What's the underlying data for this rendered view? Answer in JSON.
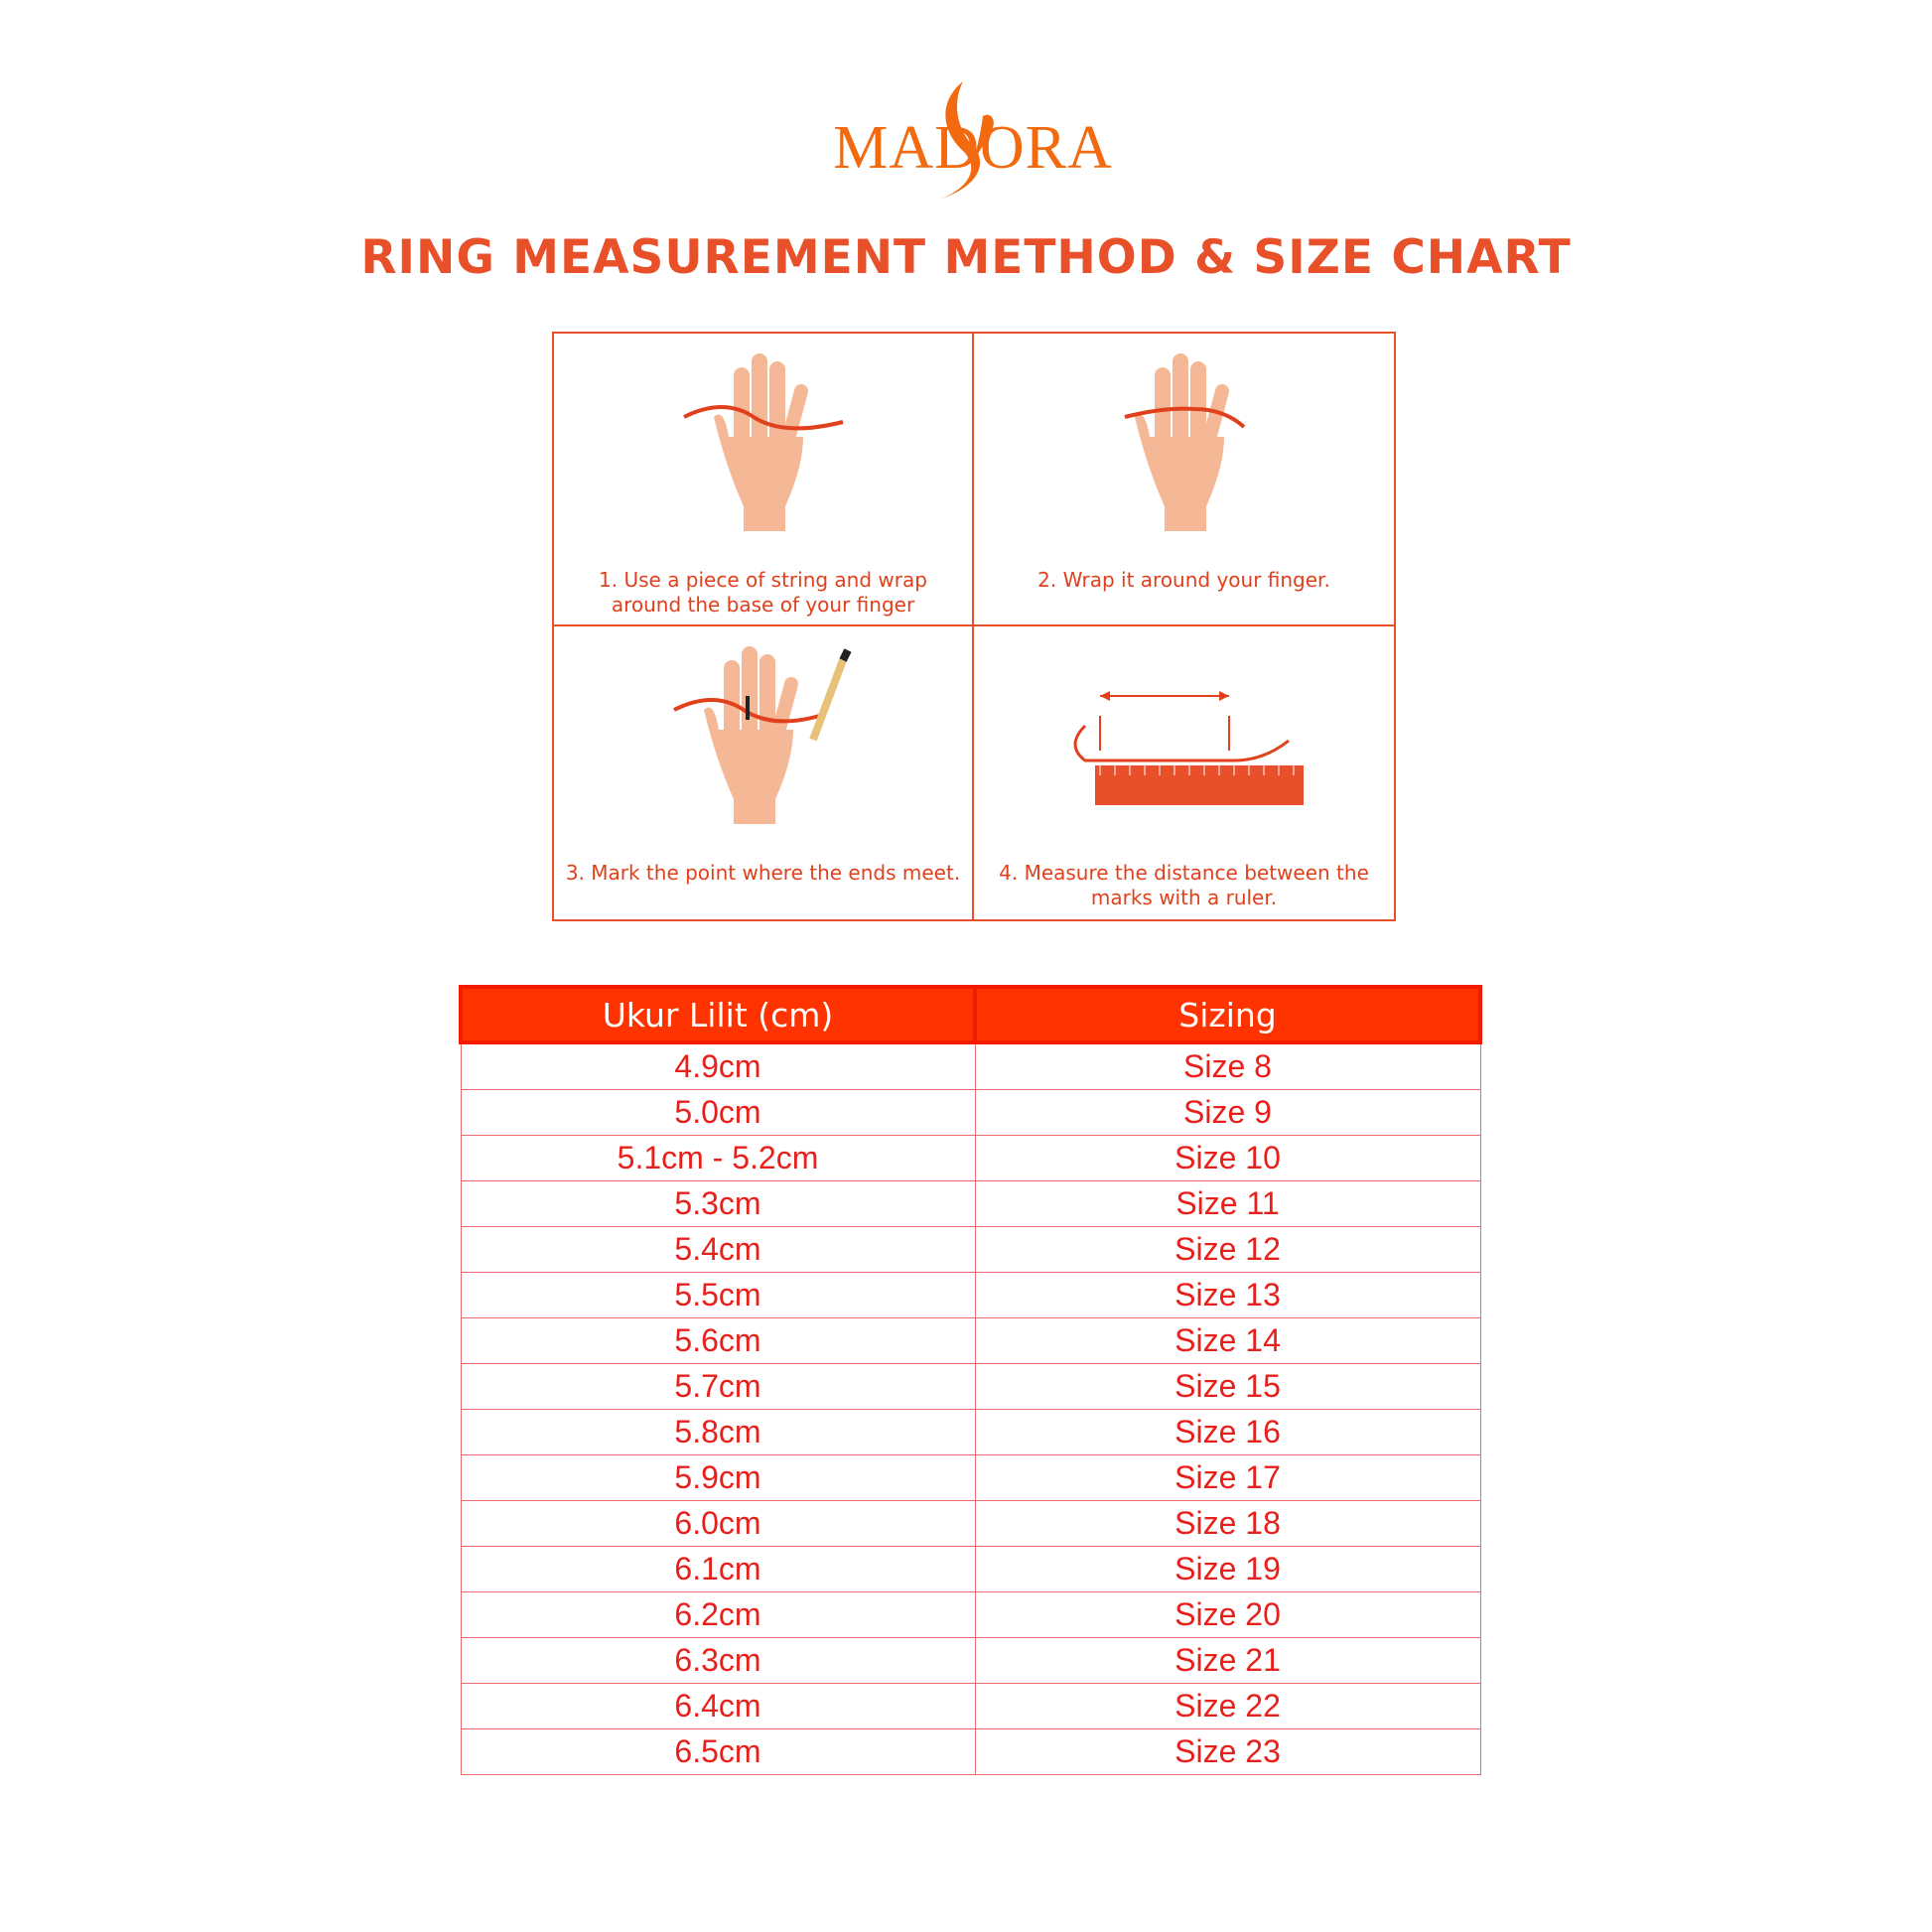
{
  "brand": {
    "logo_text": "MADORA",
    "color": "#f26a10"
  },
  "title": "RING MEASUREMENT METHOD  & SIZE CHART",
  "steps": [
    {
      "caption": "1. Use a piece of string and wrap around the base of your finger",
      "icon": "hand-with-string-icon"
    },
    {
      "caption": "2. Wrap it around your finger.",
      "icon": "hand-string-wrapped-icon"
    },
    {
      "caption": "3. Mark the point where the ends meet.",
      "icon": "hand-marking-pencil-icon"
    },
    {
      "caption": "4. Measure the distance between the marks with a ruler.",
      "icon": "ruler-measure-icon"
    }
  ],
  "size_table": {
    "headers": [
      "Ukur Lilit (cm)",
      "Sizing"
    ],
    "rows": [
      [
        "4.9cm",
        "Size 8"
      ],
      [
        "5.0cm",
        "Size 9"
      ],
      [
        "5.1cm - 5.2cm",
        "Size 10"
      ],
      [
        "5.3cm",
        "Size 11"
      ],
      [
        "5.4cm",
        "Size 12"
      ],
      [
        "5.5cm",
        "Size 13"
      ],
      [
        "5.6cm",
        "Size 14"
      ],
      [
        "5.7cm",
        "Size 15"
      ],
      [
        "5.8cm",
        "Size 16"
      ],
      [
        "5.9cm",
        "Size 17"
      ],
      [
        "6.0cm",
        "Size 18"
      ],
      [
        "6.1cm",
        "Size 19"
      ],
      [
        "6.2cm",
        "Size 20"
      ],
      [
        "6.3cm",
        "Size 21"
      ],
      [
        "6.4cm",
        "Size 22"
      ],
      [
        "6.5cm",
        "Size 23"
      ]
    ]
  },
  "colors": {
    "accent": "#e8502a",
    "header_bg": "#ff3300",
    "skin": "#f4b896"
  }
}
